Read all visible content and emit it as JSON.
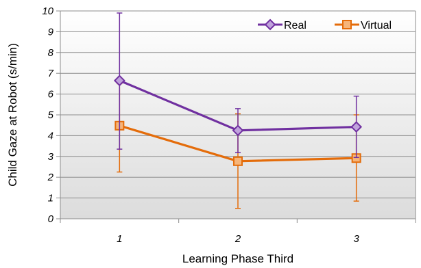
{
  "chart_data": {
    "type": "line",
    "xlabel": "Learning Phase Third",
    "ylabel": "Child Gaze at Robot (s/min)",
    "categories": [
      "1",
      "2",
      "3"
    ],
    "ylim": [
      0,
      10
    ],
    "yticks": [
      0,
      1,
      2,
      3,
      4,
      5,
      6,
      7,
      8,
      9,
      10
    ],
    "grid": "horizontal",
    "legend_position": "top-right",
    "series": [
      {
        "name": "Real",
        "color": "#7030A0",
        "marker": "diamond",
        "values": [
          6.65,
          4.25,
          4.42
        ],
        "error_low": [
          3.35,
          3.18,
          2.95
        ],
        "error_high": [
          9.9,
          5.3,
          5.9
        ]
      },
      {
        "name": "Virtual",
        "color": "#E46C0A",
        "marker": "square",
        "values": [
          4.48,
          2.77,
          2.92
        ],
        "error_low": [
          2.25,
          0.5,
          0.85
        ],
        "error_high": [
          6.5,
          5.05,
          5.0
        ]
      }
    ]
  }
}
